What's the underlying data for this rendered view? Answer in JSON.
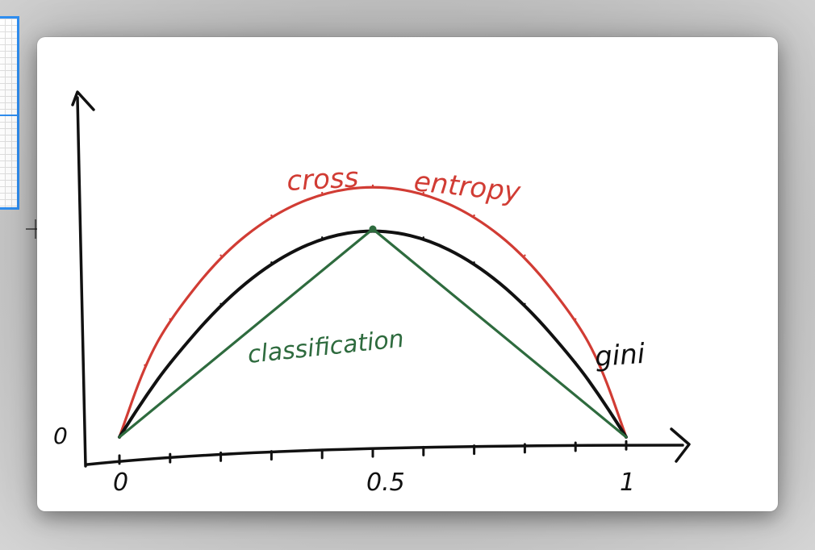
{
  "window": {
    "left_panel": "selection-panel",
    "cursor_icon": "crosshair-icon"
  },
  "chart_data": {
    "type": "line",
    "title": "",
    "xlabel": "",
    "ylabel": "",
    "xlim": [
      0,
      1
    ],
    "ylim": [
      0,
      1
    ],
    "x_tick_labels": [
      "0",
      "0.5",
      "1"
    ],
    "x_ticks": [
      0,
      0.5,
      1
    ],
    "y_tick_labels": [
      "0"
    ],
    "y_ticks": [
      0
    ],
    "grid": false,
    "series": [
      {
        "name": "cross entropy",
        "label_parts": [
          "cross",
          "entropy"
        ],
        "color": "#d13c34",
        "x": [
          0,
          0.05,
          0.1,
          0.2,
          0.3,
          0.4,
          0.5,
          0.6,
          0.7,
          0.8,
          0.9,
          0.95,
          1
        ],
        "y": [
          0,
          0.286,
          0.469,
          0.722,
          0.881,
          0.971,
          1.0,
          0.971,
          0.881,
          0.722,
          0.469,
          0.286,
          0
        ]
      },
      {
        "name": "gini",
        "label_parts": [
          "gini"
        ],
        "color": "#111111",
        "x": [
          0,
          0.05,
          0.1,
          0.2,
          0.3,
          0.4,
          0.5,
          0.6,
          0.7,
          0.8,
          0.9,
          0.95,
          1
        ],
        "y": [
          0,
          0.19,
          0.36,
          0.64,
          0.84,
          0.96,
          1.0,
          0.96,
          0.84,
          0.64,
          0.36,
          0.19,
          0
        ]
      },
      {
        "name": "classification",
        "label_parts": [
          "classification"
        ],
        "color": "#2e6b3e",
        "x": [
          0,
          0.5,
          1
        ],
        "y": [
          0,
          1.0,
          0
        ]
      }
    ]
  }
}
